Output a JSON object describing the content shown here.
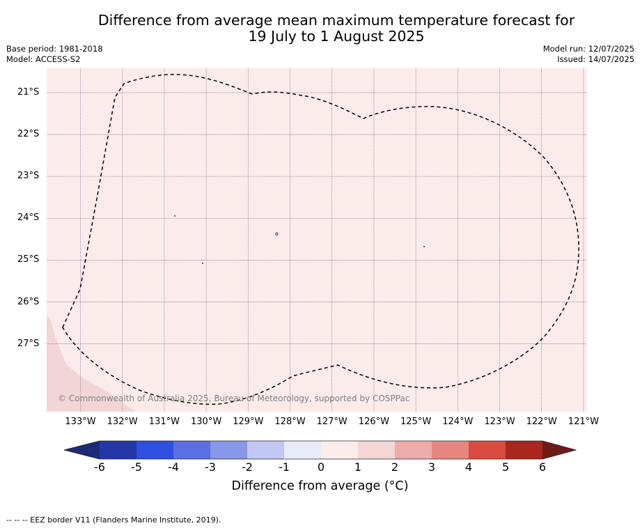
{
  "title_line1": "Difference from average mean maximum temperature forecast for",
  "title_line2": "19 July to 1 August 2025",
  "base_period": "Base period: 1981-2018",
  "model": "Model: ACCESS-S2",
  "model_run": "Model run: 12/07/2025",
  "issued": "Issued: 14/07/2025",
  "map": {
    "background_fill": "#fbeceb",
    "land_fill": "#f2d6d5",
    "lat_labels": [
      "21°S",
      "22°S",
      "23°S",
      "24°S",
      "25°S",
      "26°S",
      "27°S"
    ],
    "lon_labels": [
      "133°W",
      "132°W",
      "131°W",
      "130°W",
      "129°W",
      "128°W",
      "127°W",
      "126°W",
      "125°W",
      "124°W",
      "123°W",
      "122°W",
      "121°W"
    ],
    "copyright": "© Commonwealth of Australia 2025, Bureau of Meteorology, supported by COSPPac"
  },
  "colorbar": {
    "ticks": [
      "-6",
      "-5",
      "-4",
      "-3",
      "-2",
      "-1",
      "0",
      "1",
      "2",
      "3",
      "4",
      "5",
      "6"
    ],
    "colors": [
      "#2437a8",
      "#2f4fe0",
      "#5a6fe3",
      "#8797ea",
      "#c1c8f4",
      "#e8ebfa",
      "#fbecea",
      "#f3d6d5",
      "#ecaca8",
      "#e5867f",
      "#d94b40",
      "#a9271f"
    ],
    "low_extend_color": "#1c2a78",
    "high_extend_color": "#6e1a16",
    "label": "Difference from average (°C)"
  },
  "footer": "--  --  -- EEZ border V11 (Flanders Marine Institute, 2019)."
}
